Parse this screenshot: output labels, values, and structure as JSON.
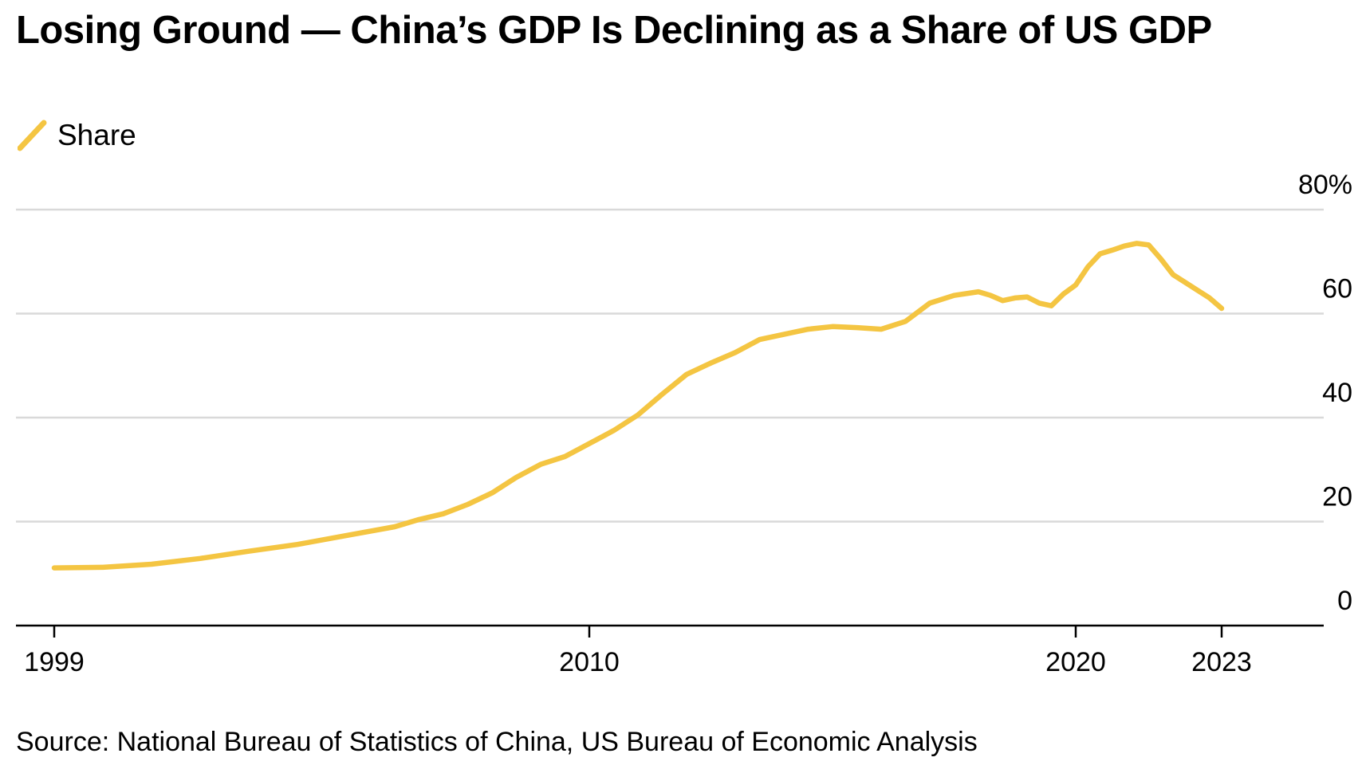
{
  "header": {
    "title": "Losing Ground — China’s GDP Is Declining as a Share of US GDP"
  },
  "legend": {
    "label": "Share"
  },
  "footer": {
    "source": "Source: National Bureau of Statistics of China, US Bureau of Economic Analysis"
  },
  "colors": {
    "series": "#f4c542",
    "grid": "#d9d9d9",
    "axis": "#000000"
  },
  "chart_data": {
    "type": "line",
    "title": "Losing Ground — China’s GDP Is Declining as a Share of US GDP",
    "xlabel": "",
    "ylabel": "",
    "xlim": [
      1999,
      2025.1
    ],
    "ylim": [
      0,
      80
    ],
    "y_ticks": [
      0,
      20,
      40,
      60,
      80
    ],
    "y_tick_labels": [
      "0",
      "20",
      "40",
      "60",
      "80%"
    ],
    "x_ticks": [
      1999,
      2010,
      2020,
      2023
    ],
    "x_tick_labels": [
      "1999",
      "2010",
      "2020",
      "2023"
    ],
    "grid": true,
    "y_axis_side": "right",
    "legend_position": "top-left",
    "series": [
      {
        "name": "Share",
        "color": "#f4c542",
        "x": [
          1999,
          2000,
          2001,
          2002,
          2003,
          2004,
          2005,
          2006,
          2006.5,
          2007,
          2007.5,
          2008,
          2008.5,
          2009,
          2009.5,
          2010,
          2010.5,
          2011,
          2011.5,
          2012,
          2012.5,
          2013,
          2013.5,
          2014,
          2014.5,
          2015,
          2015.5,
          2016,
          2016.5,
          2017,
          2017.5,
          2018,
          2018.25,
          2018.5,
          2018.75,
          2019,
          2019.25,
          2019.5,
          2019.75,
          2020,
          2020.25,
          2020.5,
          2020.75,
          2021,
          2021.25,
          2021.5,
          2021.75,
          2022,
          2022.25,
          2022.5,
          2022.75,
          2023
        ],
        "values": [
          11.1,
          11.2,
          11.8,
          12.9,
          14.3,
          15.6,
          17.3,
          19.0,
          20.4,
          21.5,
          23.3,
          25.5,
          28.5,
          31.0,
          32.5,
          35.0,
          37.5,
          40.5,
          44.5,
          48.3,
          50.5,
          52.5,
          55.0,
          56.0,
          57.0,
          57.5,
          57.3,
          57.0,
          58.5,
          62.0,
          63.5,
          64.2,
          63.5,
          62.5,
          63.0,
          63.2,
          62.0,
          61.5,
          63.8,
          65.5,
          69.0,
          71.5,
          72.2,
          73.0,
          73.5,
          73.2,
          70.5,
          67.5,
          66.0,
          64.5,
          63.0,
          61.0
        ]
      }
    ]
  }
}
